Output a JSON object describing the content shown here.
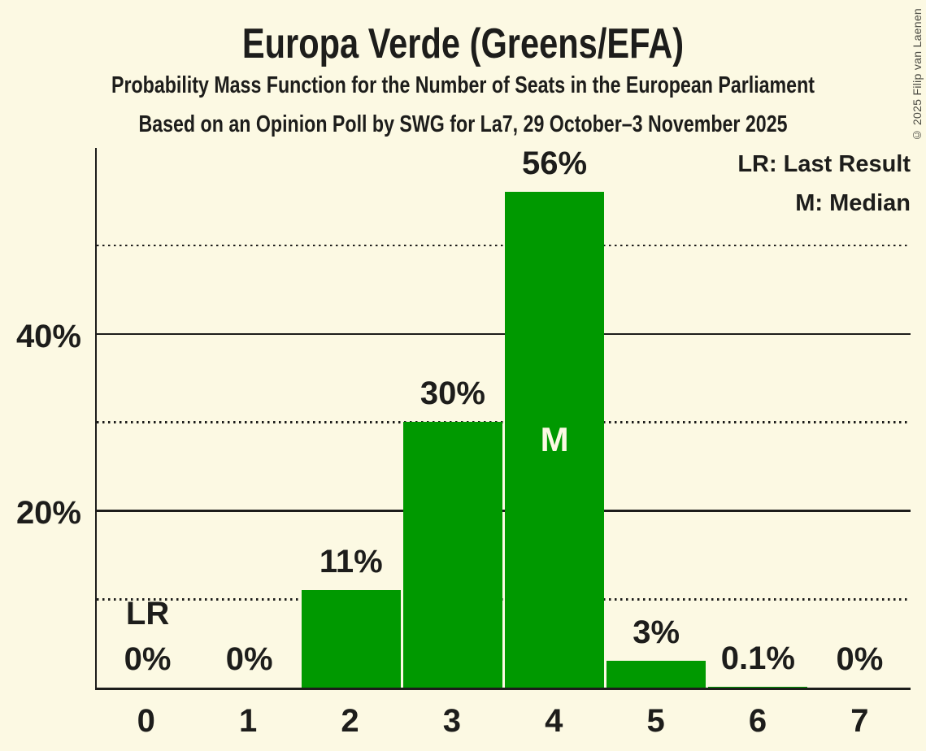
{
  "header": {
    "title": "Europa Verde (Greens/EFA)",
    "subtitle": "Probability Mass Function for the Number of Seats in the European Parliament",
    "source": "Based on an Opinion Poll by SWG for La7, 29 October–3 November 2025"
  },
  "legend": {
    "last_result": "LR: Last Result",
    "median": "M: Median"
  },
  "copyright": "© 2025 Filip van Laenen",
  "colors": {
    "background": "#FCF9E3",
    "bar": "#009900",
    "text": "#1D1D1B"
  },
  "chart_data": {
    "type": "bar",
    "title": "Europa Verde (Greens/EFA)",
    "subtitle": "Probability Mass Function for the Number of Seats in the European Parliament",
    "source": "Based on an Opinion Poll by SWG for La7, 29 October–3 November 2025",
    "xlabel": "",
    "ylabel": "",
    "categories": [
      "0",
      "1",
      "2",
      "3",
      "4",
      "5",
      "6",
      "7"
    ],
    "values": [
      0,
      0,
      11,
      30,
      56,
      3,
      0.1,
      0
    ],
    "bar_labels": [
      "0%",
      "0%",
      "11%",
      "30%",
      "56%",
      "3%",
      "0.1%",
      "0%"
    ],
    "ylim": [
      0,
      61
    ],
    "y_ticks": [
      {
        "value": 20,
        "label": "20%"
      },
      {
        "value": 40,
        "label": "40%"
      }
    ],
    "gridlines": [
      {
        "value": 10,
        "style": "dotted"
      },
      {
        "value": 20,
        "style": "solid"
      },
      {
        "value": 30,
        "style": "dotted"
      },
      {
        "value": 40,
        "style": "solid"
      },
      {
        "value": 50,
        "style": "dotted"
      }
    ],
    "median": {
      "seat_index": 4,
      "marker": "M"
    },
    "last_result": {
      "seat_index": 0,
      "marker": "LR"
    },
    "legend_entries": [
      "LR: Last Result",
      "M: Median"
    ],
    "legend_position": "top-right",
    "grid": true
  }
}
